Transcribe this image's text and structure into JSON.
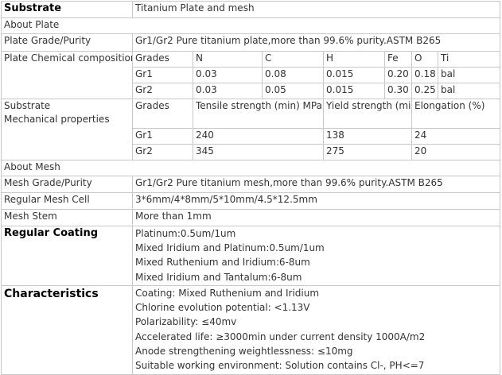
{
  "substrate": {
    "label": "Substrate",
    "value": "Titanium Plate and mesh"
  },
  "about_plate": "About Plate",
  "plate_grade": {
    "label": "Plate Grade/Purity",
    "value": "Gr1/Gr2 Pure titanium plate,more than 99.6% purity.ASTM B265"
  },
  "chemical": {
    "label": "Plate Chemical composition",
    "headers": [
      "Grades",
      "N",
      "C",
      "H",
      "Fe",
      "O",
      "Ti"
    ],
    "rows": [
      [
        "Gr1",
        "0.03",
        "0.08",
        "0.015",
        "0.20",
        "0.18",
        "bal"
      ],
      [
        "Gr2",
        "0.03",
        "0.05",
        "0.015",
        "0.30",
        "0.25",
        "bal"
      ]
    ]
  },
  "mechanical": {
    "label_line1": "Substrate",
    "label_line2": "Mechanical properties",
    "headers": [
      "Grades",
      "Tensile strength (min) MPa",
      "Yield strength  (min) MPa",
      "Elongation (%)"
    ],
    "rows": [
      [
        "Gr1",
        "240",
        "138",
        "24"
      ],
      [
        "Gr2",
        "345",
        "275",
        "20"
      ]
    ]
  },
  "about_mesh": "About Mesh",
  "mesh_grade": {
    "label": "Mesh Grade/Purity",
    "value": "Gr1/Gr2 Pure titanium mesh,more than 99.6% purity.ASTM B265"
  },
  "mesh_cell": {
    "label": "Regular Mesh Cell",
    "value": "3*6mm/4*8mm/5*10mm/4.5*12.5mm"
  },
  "mesh_stem": {
    "label": "Mesh Stem",
    "value": "More than 1mm"
  },
  "coating": {
    "label": "Regular Coating",
    "lines": [
      "Platinum:0.5um/1um",
      "Mixed Iridium and Platinum:0.5um/1um",
      "Mixed Ruthenium and Iridium:6-8um",
      "Mixed Iridium and Tantalum:6-8um"
    ]
  },
  "characteristics": {
    "label": "Characteristics",
    "lines": [
      "Coating: Mixed Ruthenium and Iridium",
      "Chlorine evolution potential: <1.13V",
      "Polarizability: ≤40mv",
      "Accelerated life:   ≥3000min under current density 1000A/m2",
      "Anode strengthening weightlessness: ≤10mg",
      "Suitable working environment: Solution contains Cl-, PH<=7"
    ]
  }
}
